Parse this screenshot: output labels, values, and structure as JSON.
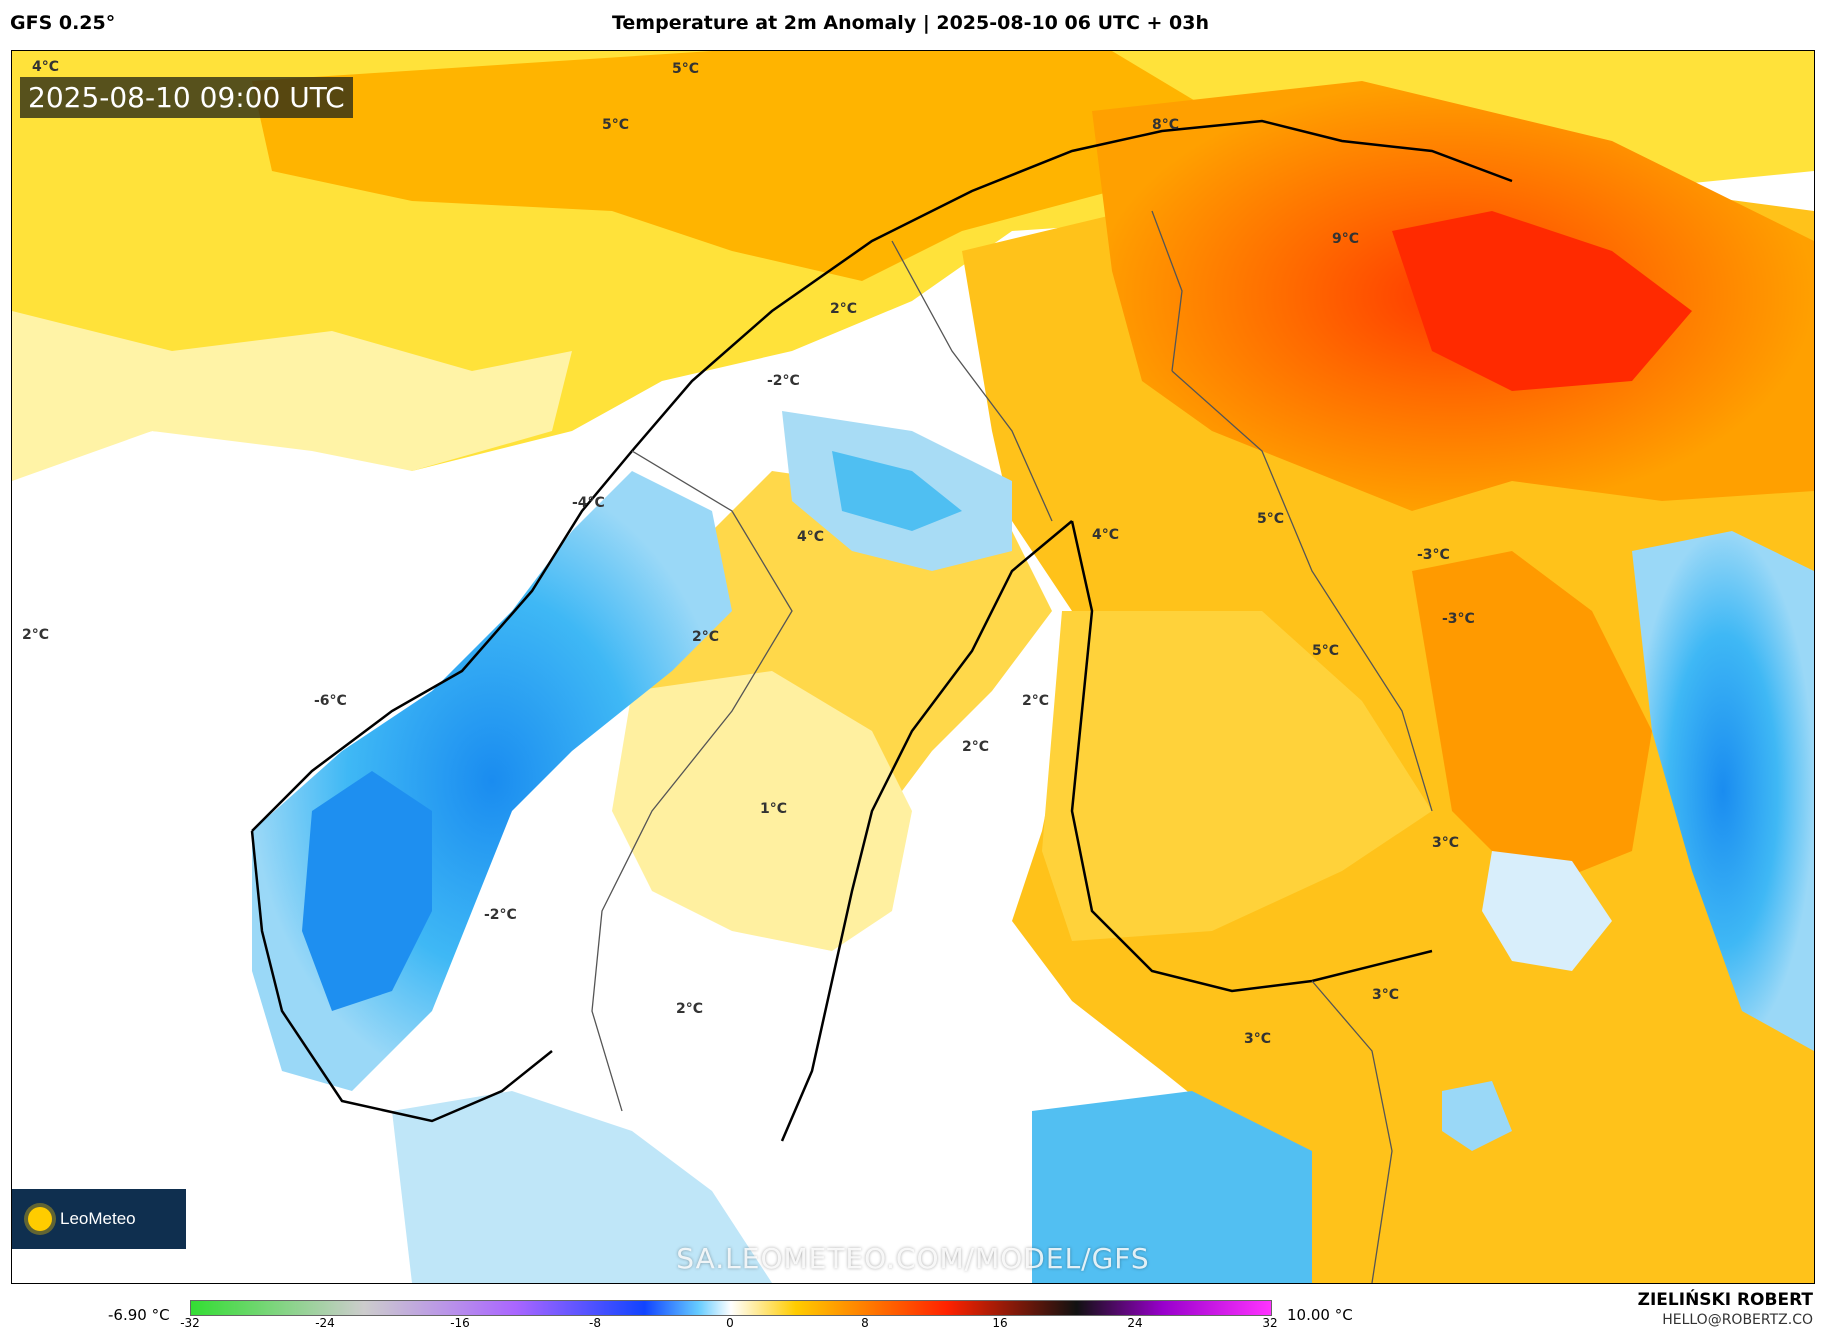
{
  "header": {
    "model": "GFS 0.25°",
    "title": "Temperature at 2m Anomaly | 2025-08-10 06 UTC + 03h"
  },
  "map": {
    "timestamp": "2025-08-10 09:00 UTC",
    "watermark": "SA.LEOMETEO.COM/MODEL/GFS",
    "logo_text": "LeoMeteo",
    "labels": [
      "4°C",
      "5°C",
      "5°C",
      "2°C",
      "8°C",
      "9°C",
      "2°C",
      "-2°C",
      "-4°C",
      "4°C",
      "4°C",
      "5°C",
      "-3°C",
      "-3°C",
      "2°C",
      "2°C",
      "-6°C",
      "5°C",
      "2°C",
      "1°C",
      "3°C",
      "-2°C",
      "2°C",
      "3°C",
      "3°C"
    ]
  },
  "colorbar": {
    "min_label": "-6.90 °C",
    "max_label": "10.00 °C",
    "ticks": [
      "-32",
      "-24",
      "-16",
      "-8",
      "0",
      "8",
      "16",
      "24",
      "32"
    ],
    "colors": {
      "neg_far": "#33dd33",
      "neg_mid": "#aa66ff",
      "neg_near": "#1144ff",
      "zero": "#ffffff",
      "pos_near": "#ffcc00",
      "pos_mid": "#ff2200",
      "pos_dark": "#111111",
      "pos_far": "#ff33ff"
    }
  },
  "author": {
    "name": "ZIELIŃSKI ROBERT",
    "email": "HELLO@ROBERTZ.CO"
  }
}
